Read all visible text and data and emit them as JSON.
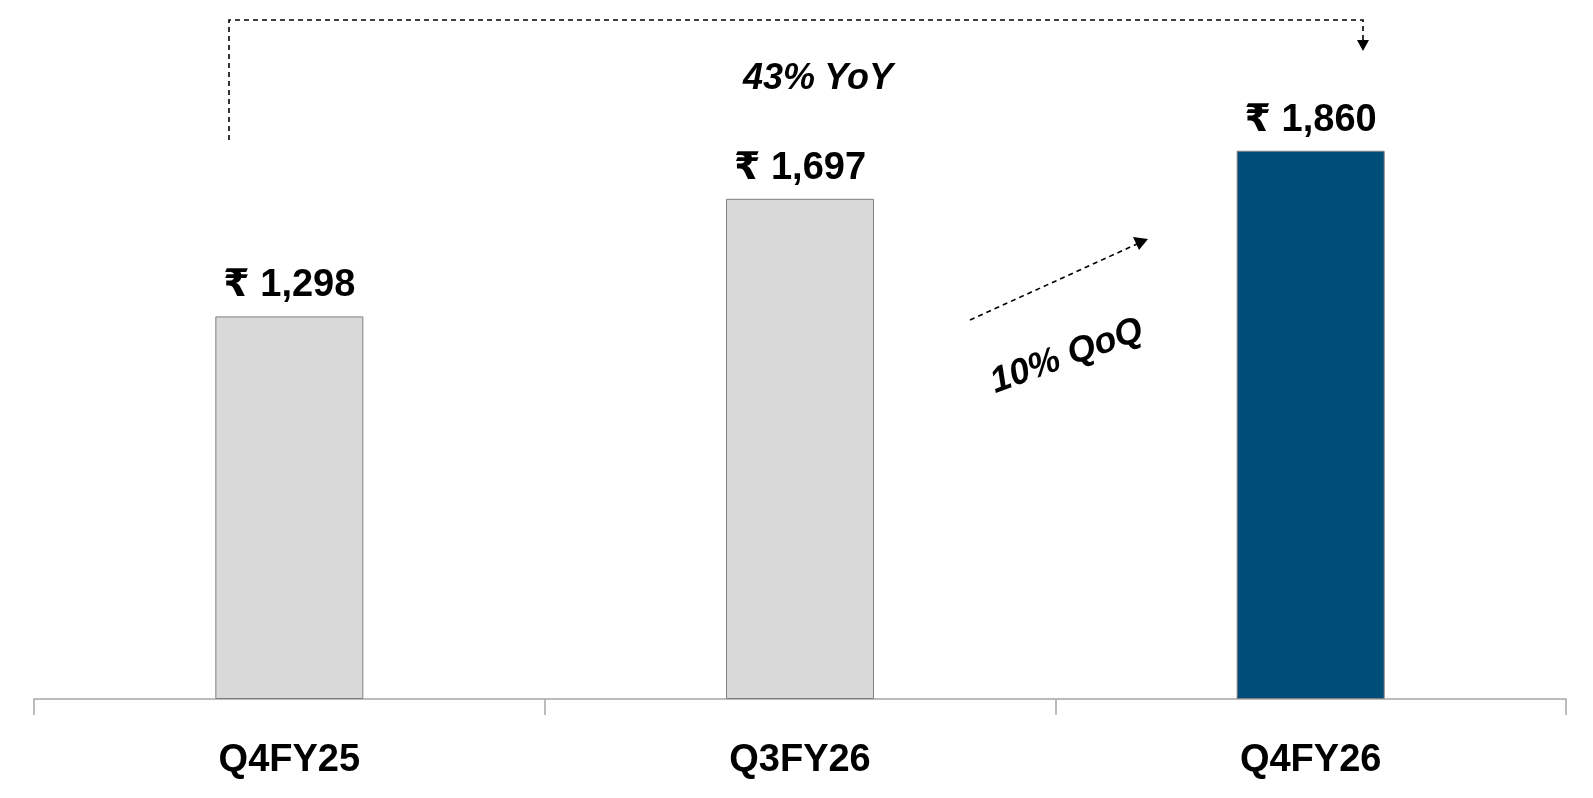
{
  "chart_data": {
    "type": "bar",
    "categories": [
      "Q4FY25",
      "Q3FY26",
      "Q4FY26"
    ],
    "values": [
      1298,
      1697,
      1860
    ],
    "colors": [
      "#d9d9d9",
      "#d9d9d9",
      "#004d7a"
    ],
    "value_labels": [
      "₹ 1,298",
      "₹ 1,697",
      "₹ 1,860"
    ],
    "annotations": [
      "43% YoY",
      "10% QoQ"
    ]
  }
}
